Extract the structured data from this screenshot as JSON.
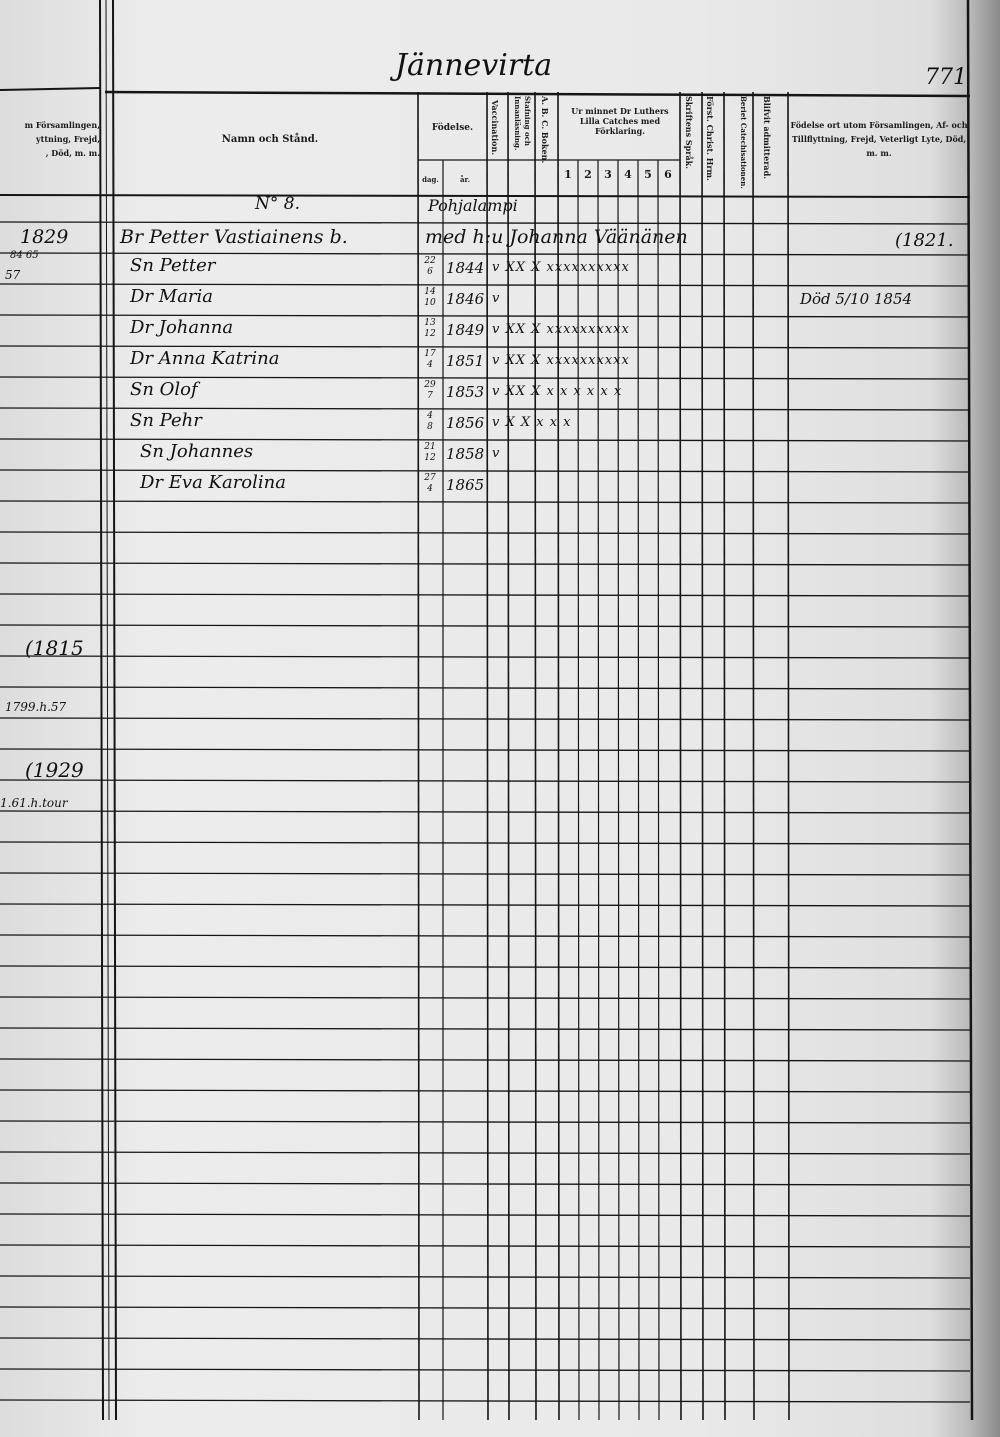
{
  "title": "Jännevirta",
  "page_number": "771",
  "left_page_header": [
    "m Församlingen,",
    "yttning, Frejd,",
    ", Död, m. m."
  ],
  "columns": {
    "name": "Namn och Stånd.",
    "birth": "Födelse.",
    "birth_day": "dag.",
    "birth_year": "år.",
    "vaccination": "Vaccination.",
    "reading": "Stafning och Innanläsning.",
    "abc": "A. B. C. Boken.",
    "catechism": "Ur minnet Dr Luthers Lilla Catches med Förklaring.",
    "catechism_parts": [
      "1",
      "2",
      "3",
      "4",
      "5",
      "6"
    ],
    "scripture": "Skriftens Språk.",
    "christ": "Först. Christ. Hrm.",
    "catechisation": "Beriet Catechisationen.",
    "admitted": "Blifvit admitterad.",
    "remarks": "Födelse ort utom Församlingen, Af- och Tillflyttning, Frejd, Veterligt Lyte, Död, m. m."
  },
  "household": {
    "number": "N° 8.",
    "place": "Pohjalampi",
    "head": "Br Petter Vastiainens b.",
    "spouse": "med h:u Johanna Väänänen",
    "head_remark": "(1821."
  },
  "members": [
    {
      "name": "Sn Petter",
      "day": "22/6",
      "year": "1844",
      "marks": "v XX X xxxxxxxxxx",
      "notes": "",
      "remark": ""
    },
    {
      "name": "Dr Maria",
      "day": "14/10",
      "year": "1846",
      "marks": "v",
      "notes": "",
      "remark": "Död 5/10 1854"
    },
    {
      "name": "Dr Johanna",
      "day": "13/12",
      "year": "1849",
      "marks": "v XX X xxxxxxxxxx",
      "notes": "",
      "remark": ""
    },
    {
      "name": "Dr Anna Katrina",
      "day": "17/4",
      "year": "1851",
      "marks": "v XX X xxxxxxxxxx",
      "notes": "",
      "remark": ""
    },
    {
      "name": "Sn Olof",
      "day": "29/7",
      "year": "1853",
      "marks": "v XX X x x x x x x",
      "notes": "",
      "remark": ""
    },
    {
      "name": "Sn Pehr",
      "day": "4/8",
      "year": "1856",
      "marks": "v X X x x x",
      "notes": "",
      "remark": ""
    },
    {
      "name": "Sn Johannes",
      "day": "21/12",
      "year": "1858",
      "marks": "v",
      "notes": "",
      "remark": ""
    },
    {
      "name": "Dr Eva Karolina",
      "day": "27/4",
      "year": "1865",
      "marks": "",
      "notes": "",
      "remark": ""
    }
  ],
  "left_margin": [
    "1829",
    "84 65",
    "57",
    "(1815",
    "1799.h.57",
    "(1929",
    "1.61.h.tour"
  ]
}
